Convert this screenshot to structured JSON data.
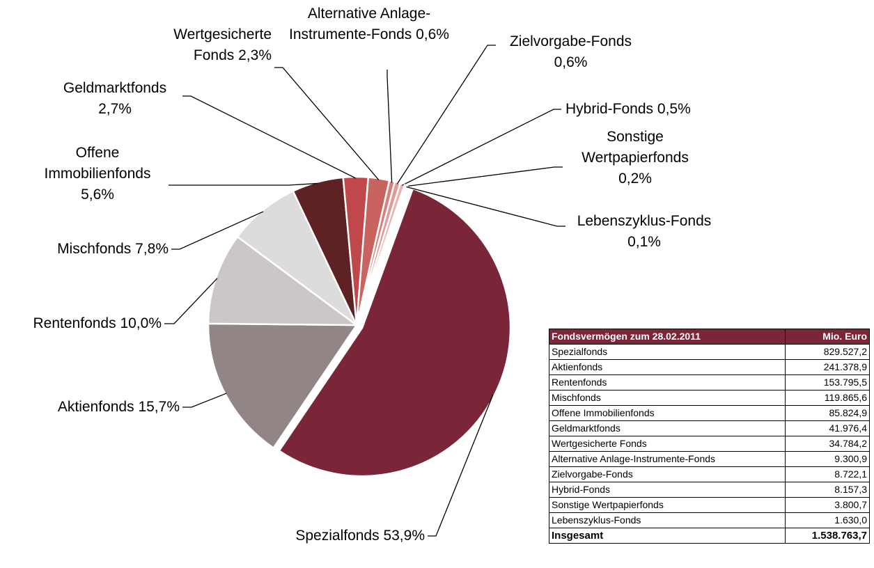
{
  "chart_data": {
    "type": "pie",
    "categories": [
      "Spezialfonds",
      "Aktienfonds",
      "Rentenfonds",
      "Mischfonds",
      "Offene Immobilienfonds",
      "Geldmarktfonds",
      "Wertgesicherte Fonds",
      "Alternative Anlage-Instrumente-Fonds",
      "Zielvorgabe-Fonds",
      "Hybrid-Fonds",
      "Sonstige Wertpapierfonds",
      "Lebenszyklus-Fonds"
    ],
    "values": [
      53.9,
      15.7,
      10.0,
      7.8,
      5.6,
      2.7,
      2.3,
      0.6,
      0.6,
      0.5,
      0.2,
      0.1
    ],
    "value_labels": [
      "53,9%",
      "15,7%",
      "10,0%",
      "7,8%",
      "5,6%",
      "2,7%",
      "2,3%",
      "0,6%",
      "0,6%",
      "0,5%",
      "0,2%",
      "0,1%"
    ],
    "colors": [
      "#7a2638",
      "#918685",
      "#cdc6c6",
      "#dcdcdc",
      "#5e2224",
      "#c0474a",
      "#c9635f",
      "#d87f7b",
      "#e29a95",
      "#eab3ae",
      "#f0c8c4",
      "#f5dcd8"
    ]
  },
  "table": {
    "header": [
      "Fondsvermögen zum 28.02.2011",
      "Mio. Euro"
    ],
    "rows": [
      [
        "Spezialfonds",
        "829.527,2"
      ],
      [
        "Aktienfonds",
        "241.378,9"
      ],
      [
        "Rentenfonds",
        "153.795,5"
      ],
      [
        "Mischfonds",
        "119.865,6"
      ],
      [
        "Offene Immobilienfonds",
        "85.824,9"
      ],
      [
        "Geldmarktfonds",
        "41.976,4"
      ],
      [
        "Wertgesicherte Fonds",
        "34.784,2"
      ],
      [
        "Alternative Anlage-Instrumente-Fonds",
        "9.300,9"
      ],
      [
        "Zielvorgabe-Fonds",
        "8.722,1"
      ],
      [
        "Hybrid-Fonds",
        "8.157,3"
      ],
      [
        "Sonstige Wertpapierfonds",
        "3.800,7"
      ],
      [
        "Lebenszyklus-Fonds",
        "1.630,0"
      ]
    ],
    "total": [
      "Insgesamt",
      "1.538.763,7"
    ]
  }
}
